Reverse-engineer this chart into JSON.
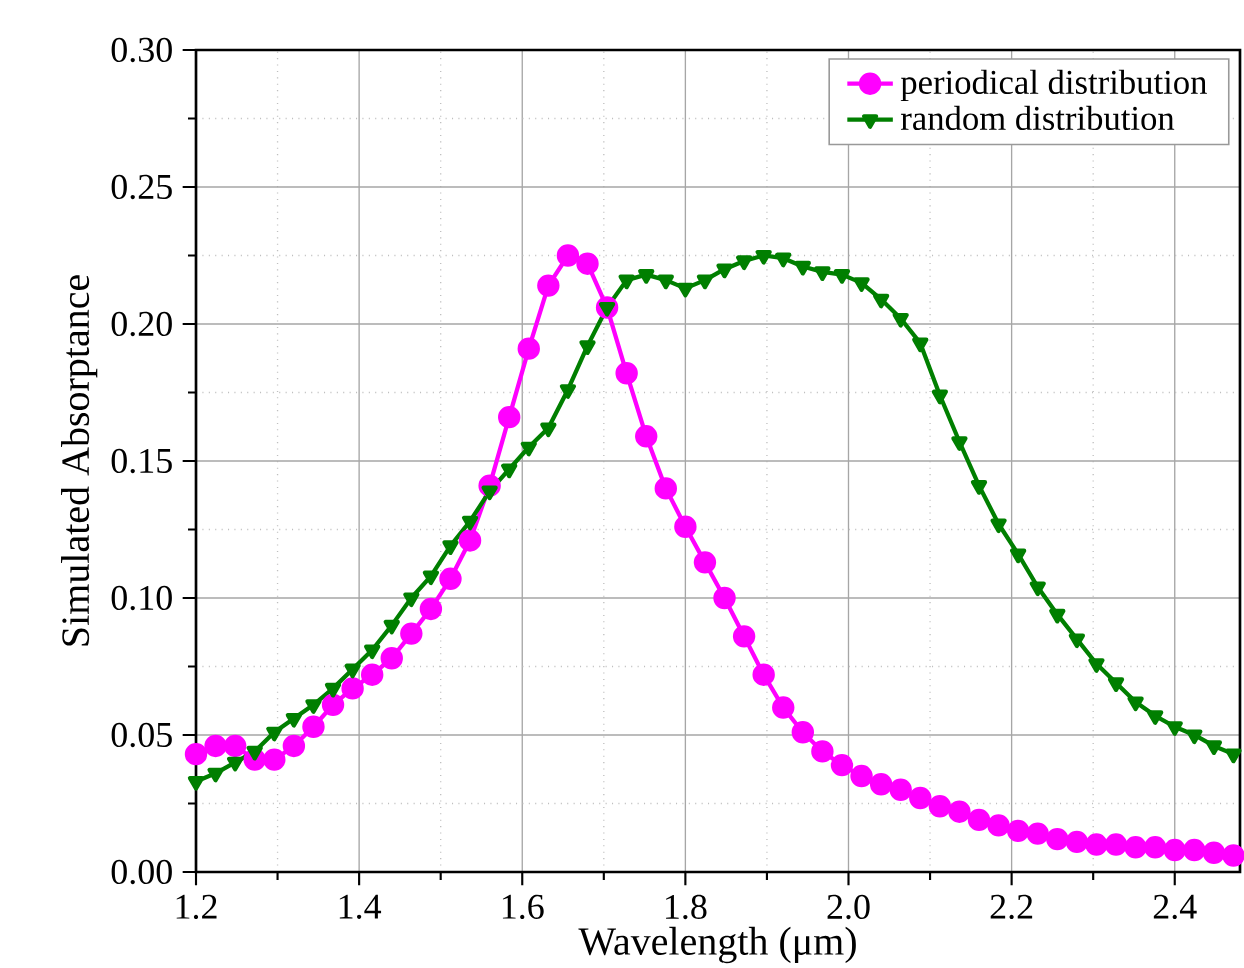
{
  "chart_data": {
    "type": "line",
    "xlabel": "Wavelength (μm)",
    "ylabel": "Simulated Absorptance",
    "x": [
      1.2,
      1.224,
      1.248,
      1.272,
      1.296,
      1.32,
      1.344,
      1.368,
      1.392,
      1.416,
      1.44,
      1.464,
      1.488,
      1.512,
      1.536,
      1.56,
      1.584,
      1.608,
      1.632,
      1.656,
      1.68,
      1.704,
      1.728,
      1.752,
      1.776,
      1.8,
      1.824,
      1.848,
      1.872,
      1.896,
      1.92,
      1.944,
      1.968,
      1.992,
      2.016,
      2.04,
      2.064,
      2.088,
      2.112,
      2.136,
      2.16,
      2.184,
      2.208,
      2.232,
      2.256,
      2.28,
      2.304,
      2.328,
      2.352,
      2.376,
      2.4,
      2.424,
      2.448,
      2.472
    ],
    "series": [
      {
        "name": "periodical distribution",
        "color": "#ff00ff",
        "marker": "circle",
        "values": [
          0.043,
          0.046,
          0.046,
          0.041,
          0.041,
          0.046,
          0.053,
          0.061,
          0.067,
          0.072,
          0.078,
          0.087,
          0.096,
          0.107,
          0.121,
          0.141,
          0.166,
          0.191,
          0.214,
          0.225,
          0.222,
          0.206,
          0.182,
          0.159,
          0.14,
          0.126,
          0.113,
          0.1,
          0.086,
          0.072,
          0.06,
          0.051,
          0.044,
          0.039,
          0.035,
          0.032,
          0.03,
          0.027,
          0.024,
          0.022,
          0.019,
          0.017,
          0.015,
          0.014,
          0.012,
          0.011,
          0.01,
          0.01,
          0.009,
          0.009,
          0.008,
          0.008,
          0.007,
          0.006
        ]
      },
      {
        "name": "random distribution",
        "color": "#007f00",
        "marker": "triangle",
        "values": [
          0.033,
          0.036,
          0.04,
          0.044,
          0.051,
          0.056,
          0.061,
          0.067,
          0.074,
          0.081,
          0.09,
          0.1,
          0.108,
          0.119,
          0.128,
          0.139,
          0.147,
          0.155,
          0.162,
          0.176,
          0.192,
          0.206,
          0.216,
          0.218,
          0.216,
          0.213,
          0.216,
          0.22,
          0.223,
          0.225,
          0.224,
          0.221,
          0.219,
          0.218,
          0.215,
          0.209,
          0.202,
          0.193,
          0.174,
          0.157,
          0.141,
          0.127,
          0.116,
          0.104,
          0.094,
          0.085,
          0.076,
          0.069,
          0.062,
          0.057,
          0.053,
          0.05,
          0.046,
          0.043
        ]
      }
    ],
    "xlim": [
      1.2,
      2.48
    ],
    "ylim": [
      0,
      0.3
    ],
    "xticks": [
      {
        "value": 1.2,
        "label": "1.2"
      },
      {
        "value": 1.3,
        "label": null
      },
      {
        "value": 1.4,
        "label": "1.4"
      },
      {
        "value": 1.5,
        "label": null
      },
      {
        "value": 1.6,
        "label": "1.6"
      },
      {
        "value": 1.7,
        "label": null
      },
      {
        "value": 1.8,
        "label": "1.8"
      },
      {
        "value": 1.9,
        "label": null
      },
      {
        "value": 2.0,
        "label": "2.0"
      },
      {
        "value": 2.1,
        "label": null
      },
      {
        "value": 2.2,
        "label": "2.2"
      },
      {
        "value": 2.3,
        "label": null
      },
      {
        "value": 2.4,
        "label": "2.4"
      }
    ],
    "yticks": [
      {
        "value": 0,
        "label": "0.00"
      },
      {
        "value": 0.025,
        "label": null
      },
      {
        "value": 0.05,
        "label": "0.05"
      },
      {
        "value": 0.075,
        "label": null
      },
      {
        "value": 0.1,
        "label": "0.10"
      },
      {
        "value": 0.125,
        "label": null
      },
      {
        "value": 0.15,
        "label": "0.15"
      },
      {
        "value": 0.175,
        "label": null
      },
      {
        "value": 0.2,
        "label": "0.20"
      },
      {
        "value": 0.225,
        "label": null
      },
      {
        "value": 0.25,
        "label": "0.25"
      },
      {
        "value": 0.275,
        "label": null
      },
      {
        "value": 0.3,
        "label": "0.30"
      }
    ],
    "grid": true,
    "legend": "top right"
  }
}
